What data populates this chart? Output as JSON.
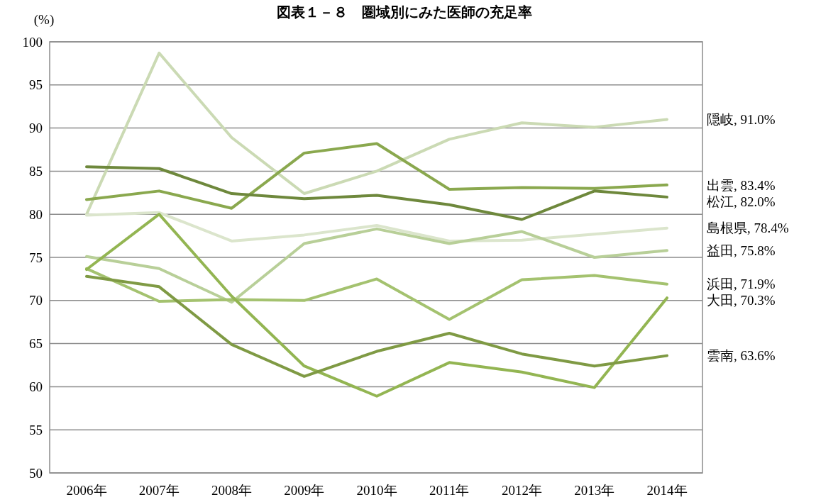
{
  "chart_data": {
    "type": "line",
    "title": "図表１－８　圏域別にみた医師の充足率",
    "ylabel": "(%)",
    "categories": [
      "2006年",
      "2007年",
      "2008年",
      "2009年",
      "2010年",
      "2011年",
      "2012年",
      "2013年",
      "2014年"
    ],
    "ylim": [
      50,
      100
    ],
    "yticks": [
      50,
      55,
      60,
      65,
      70,
      75,
      80,
      85,
      90,
      95,
      100
    ],
    "grid": "y",
    "marker": "none",
    "line_style": "solid",
    "series": [
      {
        "name": "隠岐,",
        "color": "#cbdab4",
        "values": [
          80.0,
          98.7,
          88.9,
          82.4,
          85.0,
          88.7,
          90.6,
          90.1,
          91.0
        ],
        "value_labels": [
          null,
          null,
          null,
          null,
          null,
          null,
          null,
          null,
          "91.0%"
        ]
      },
      {
        "name": "出雲,",
        "color": "#8aa84e",
        "values": [
          81.7,
          82.7,
          80.7,
          87.1,
          88.2,
          82.9,
          83.1,
          83.0,
          83.4
        ],
        "value_labels": [
          null,
          null,
          null,
          null,
          null,
          null,
          null,
          null,
          "83.4%"
        ]
      },
      {
        "name": "松江,",
        "color": "#6e883c",
        "values": [
          85.5,
          85.3,
          82.4,
          81.8,
          82.2,
          81.1,
          79.4,
          82.7,
          82.0
        ],
        "value_labels": [
          null,
          null,
          null,
          null,
          null,
          null,
          null,
          null,
          "82.0%"
        ]
      },
      {
        "name": "島根県,",
        "color": "#dbe5cc",
        "values": [
          79.9,
          80.2,
          76.9,
          77.6,
          78.7,
          76.9,
          77.0,
          77.7,
          78.4
        ],
        "value_labels": [
          null,
          null,
          null,
          null,
          null,
          null,
          null,
          null,
          "78.4%"
        ]
      },
      {
        "name": "益田,",
        "color": "#b8cf98",
        "values": [
          75.1,
          73.7,
          69.8,
          76.6,
          78.3,
          76.6,
          78.0,
          75.0,
          75.8
        ],
        "value_labels": [
          null,
          null,
          null,
          null,
          null,
          null,
          null,
          null,
          "75.8%"
        ]
      },
      {
        "name": "浜田,",
        "color": "#a4c26f",
        "values": [
          73.7,
          69.9,
          70.1,
          70.0,
          72.5,
          67.8,
          72.4,
          72.9,
          71.9
        ],
        "value_labels": [
          null,
          null,
          null,
          null,
          null,
          null,
          null,
          null,
          "71.9%"
        ]
      },
      {
        "name": "大田,",
        "color": "#93b552",
        "values": [
          73.6,
          80.0,
          70.5,
          62.4,
          58.9,
          62.8,
          61.7,
          59.9,
          70.3
        ],
        "value_labels": [
          null,
          null,
          null,
          null,
          null,
          null,
          null,
          null,
          "70.3%"
        ]
      },
      {
        "name": "雲南,",
        "color": "#7f9a44",
        "values": [
          72.8,
          71.6,
          64.9,
          61.2,
          64.1,
          66.2,
          63.8,
          62.4,
          63.6
        ],
        "value_labels": [
          null,
          null,
          null,
          null,
          null,
          null,
          null,
          null,
          "63.6%"
        ]
      }
    ]
  }
}
